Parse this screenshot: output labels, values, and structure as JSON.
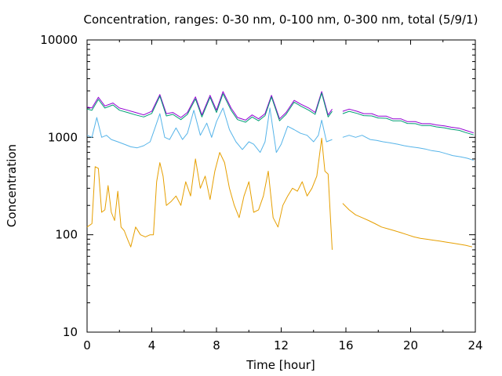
{
  "chart_data": {
    "type": "line",
    "title": "Concentration, ranges: 0-30 nm, 0-100 nm, 0-300 nm, total (5/9/1)",
    "xlabel": "Time [hour]",
    "ylabel": "Concentration",
    "xlim": [
      0,
      24
    ],
    "ylim": [
      10,
      10000
    ],
    "y_scale": "log",
    "grid": false,
    "x_ticks": [
      0,
      4,
      8,
      12,
      16,
      20,
      24
    ],
    "x_tick_labels": [
      "0",
      "4",
      "8",
      "12",
      "16",
      "20",
      "24"
    ],
    "y_ticks": [
      10,
      100,
      1000,
      10000
    ],
    "y_tick_labels": [
      "10",
      "100",
      "1000",
      "10000"
    ],
    "gap": [
      15.2,
      15.8
    ],
    "series": [
      {
        "color": "#9400d3",
        "x": [
          0,
          0.3,
          0.7,
          1.1,
          1.6,
          2.0,
          2.5,
          3.0,
          3.5,
          4.0,
          4.5,
          4.9,
          5.3,
          5.8,
          6.2,
          6.7,
          7.1,
          7.6,
          8.0,
          8.4,
          8.9,
          9.3,
          9.8,
          10.2,
          10.6,
          11.0,
          11.4,
          11.9,
          12.3,
          12.8,
          13.2,
          13.7,
          14.1,
          14.5,
          14.9,
          15.15,
          15.8,
          16.2,
          16.7,
          17.1,
          17.6,
          18.0,
          18.5,
          18.9,
          19.4,
          19.8,
          20.3,
          20.7,
          21.2,
          21.6,
          22.1,
          22.5,
          23.0,
          23.4,
          23.9
        ],
        "y": [
          2050,
          2000,
          2580,
          2100,
          2250,
          2000,
          1900,
          1800,
          1700,
          1850,
          2750,
          1750,
          1800,
          1600,
          1800,
          2600,
          1700,
          2700,
          1900,
          2950,
          2000,
          1600,
          1500,
          1700,
          1550,
          1750,
          2700,
          1550,
          1800,
          2400,
          2200,
          2000,
          1800,
          2950,
          1700,
          1950,
          1850,
          1950,
          1850,
          1750,
          1750,
          1650,
          1650,
          1550,
          1550,
          1450,
          1450,
          1380,
          1380,
          1340,
          1310,
          1270,
          1240,
          1180,
          1110
        ]
      },
      {
        "color": "#009e73",
        "x": [
          0,
          0.3,
          0.7,
          1.1,
          1.6,
          2.0,
          2.5,
          3.0,
          3.5,
          4.0,
          4.5,
          4.9,
          5.3,
          5.8,
          6.2,
          6.7,
          7.1,
          7.6,
          8.0,
          8.4,
          8.9,
          9.3,
          9.8,
          10.2,
          10.6,
          11.0,
          11.4,
          11.9,
          12.3,
          12.8,
          13.2,
          13.7,
          14.1,
          14.5,
          14.9,
          15.15,
          15.8,
          16.2,
          16.7,
          17.1,
          17.6,
          18.0,
          18.5,
          18.9,
          19.4,
          19.8,
          20.3,
          20.7,
          21.2,
          21.6,
          22.1,
          22.5,
          23.0,
          23.4,
          23.9
        ],
        "y": [
          1950,
          1900,
          2450,
          2000,
          2150,
          1900,
          1800,
          1700,
          1620,
          1760,
          2650,
          1660,
          1720,
          1520,
          1720,
          2480,
          1620,
          2580,
          1800,
          2800,
          1900,
          1520,
          1430,
          1620,
          1480,
          1670,
          2600,
          1480,
          1720,
          2300,
          2100,
          1900,
          1720,
          2850,
          1620,
          1850,
          1750,
          1850,
          1760,
          1670,
          1660,
          1580,
          1570,
          1480,
          1480,
          1390,
          1380,
          1320,
          1320,
          1280,
          1250,
          1210,
          1180,
          1120,
          1060
        ]
      },
      {
        "color": "#56b4e9",
        "x": [
          0,
          0.3,
          0.6,
          0.9,
          1.2,
          1.5,
          1.9,
          2.3,
          2.7,
          3.1,
          3.5,
          3.9,
          4.2,
          4.5,
          4.8,
          5.1,
          5.5,
          5.9,
          6.2,
          6.6,
          7.0,
          7.4,
          7.7,
          8.0,
          8.4,
          8.8,
          9.2,
          9.6,
          10.0,
          10.3,
          10.7,
          11.0,
          11.3,
          11.7,
          12.0,
          12.4,
          12.8,
          13.2,
          13.6,
          14.0,
          14.3,
          14.5,
          14.8,
          15.15,
          15.8,
          16.2,
          16.6,
          17.0,
          17.5,
          17.9,
          18.3,
          18.7,
          19.2,
          19.6,
          20.0,
          20.5,
          20.9,
          21.3,
          21.8,
          22.2,
          22.6,
          23.1,
          23.5,
          23.9
        ],
        "y": [
          1050,
          1000,
          1600,
          1000,
          1050,
          950,
          900,
          850,
          800,
          780,
          820,
          900,
          1250,
          1750,
          1000,
          950,
          1250,
          950,
          1100,
          1900,
          1050,
          1400,
          1000,
          1450,
          2000,
          1200,
          900,
          750,
          900,
          850,
          700,
          900,
          2000,
          700,
          850,
          1300,
          1200,
          1100,
          1050,
          900,
          1050,
          1500,
          900,
          950,
          1000,
          1050,
          1000,
          1050,
          950,
          930,
          900,
          880,
          850,
          820,
          800,
          780,
          760,
          730,
          710,
          680,
          650,
          630,
          610,
          580
        ]
      },
      {
        "color": "#e69f00",
        "x": [
          0,
          0.3,
          0.5,
          0.7,
          0.9,
          1.1,
          1.3,
          1.5,
          1.7,
          1.9,
          2.1,
          2.3,
          2.5,
          2.7,
          3.0,
          3.3,
          3.6,
          3.9,
          4.1,
          4.3,
          4.5,
          4.7,
          4.9,
          5.2,
          5.5,
          5.8,
          6.1,
          6.4,
          6.7,
          7.0,
          7.3,
          7.6,
          7.9,
          8.2,
          8.5,
          8.8,
          9.1,
          9.4,
          9.7,
          10.0,
          10.3,
          10.6,
          10.9,
          11.2,
          11.5,
          11.8,
          12.1,
          12.4,
          12.7,
          13.0,
          13.3,
          13.6,
          13.9,
          14.2,
          14.5,
          14.7,
          14.9,
          15.15,
          15.8,
          16.2,
          16.6,
          17.0,
          17.4,
          17.8,
          18.2,
          18.6,
          19.0,
          19.4,
          19.8,
          20.2,
          20.6,
          21.0,
          21.4,
          21.8,
          22.2,
          22.6,
          23.0,
          23.4,
          23.8
        ],
        "y": [
          120,
          130,
          500,
          480,
          170,
          180,
          320,
          170,
          140,
          280,
          120,
          110,
          90,
          75,
          120,
          100,
          95,
          100,
          100,
          350,
          550,
          400,
          200,
          220,
          250,
          200,
          350,
          250,
          600,
          300,
          400,
          230,
          450,
          700,
          550,
          300,
          200,
          150,
          250,
          350,
          170,
          180,
          250,
          450,
          150,
          120,
          200,
          250,
          300,
          280,
          350,
          250,
          300,
          400,
          980,
          450,
          420,
          70,
          210,
          180,
          160,
          150,
          140,
          130,
          120,
          115,
          110,
          105,
          100,
          95,
          92,
          90,
          88,
          86,
          84,
          82,
          80,
          78,
          75
        ]
      }
    ]
  }
}
